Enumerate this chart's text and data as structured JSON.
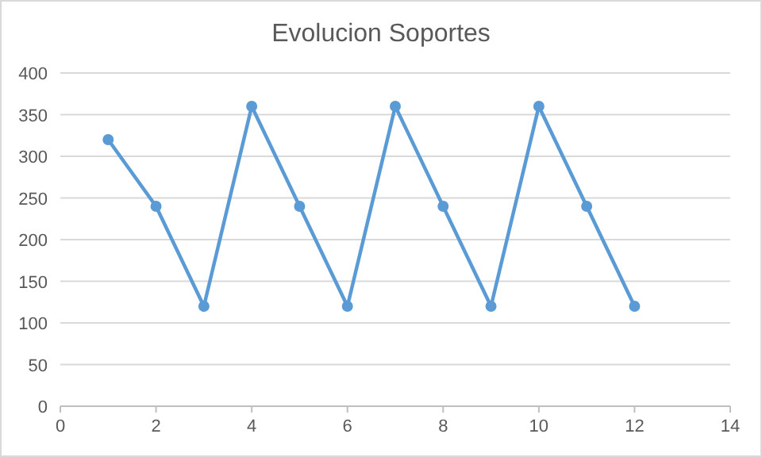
{
  "chart_data": {
    "type": "line",
    "title": "Evolucion Soportes",
    "x": [
      1,
      2,
      3,
      4,
      5,
      6,
      7,
      8,
      9,
      10,
      11,
      12
    ],
    "series": [
      {
        "color": "#5b9bd5",
        "values": [
          320,
          240,
          120,
          360,
          240,
          120,
          360,
          240,
          120,
          360,
          240,
          120
        ]
      }
    ],
    "xlim": [
      0,
      14
    ],
    "xticks": [
      0,
      2,
      4,
      6,
      8,
      10,
      12,
      14
    ],
    "ylim": [
      0,
      400
    ],
    "yticks": [
      0,
      50,
      100,
      150,
      200,
      250,
      300,
      350,
      400
    ],
    "grid": "y",
    "marker": "circle",
    "line_style": "solid"
  }
}
